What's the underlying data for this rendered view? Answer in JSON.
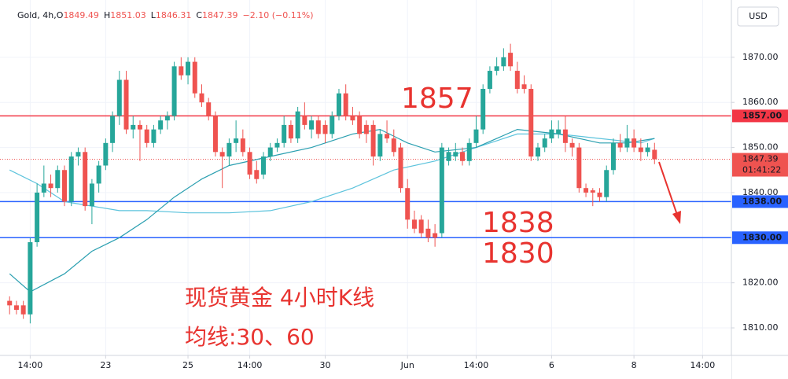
{
  "chart_data": {
    "type": "candlestick",
    "symbol": "Gold, 4h,",
    "header_values": [
      {
        "label": "O",
        "value": 1849.49
      },
      {
        "label": "H",
        "value": 1851.03
      },
      {
        "label": "L",
        "value": 1846.31
      },
      {
        "label": "C",
        "value": 1847.39
      }
    ],
    "change": "−2.10 (−0.11%)",
    "currency": "USD",
    "x": [
      0,
      1,
      2,
      3,
      4,
      5,
      6,
      7,
      8,
      9,
      10,
      11,
      12,
      13,
      14,
      15,
      16,
      17,
      18,
      19,
      20,
      21,
      22,
      23,
      24,
      25,
      26,
      27,
      28,
      29,
      30,
      31,
      32,
      33,
      34,
      35,
      36,
      37,
      38,
      39,
      40,
      41,
      42,
      43,
      44,
      45,
      46,
      47,
      48,
      49,
      50,
      51,
      52,
      53,
      54,
      55,
      56,
      57,
      58,
      59,
      60,
      61,
      62,
      63,
      64,
      65,
      66,
      67,
      68,
      69,
      70,
      71,
      72,
      73,
      74,
      75,
      76,
      77,
      78,
      79,
      80,
      81,
      82,
      83,
      84,
      85,
      86,
      87,
      88,
      89,
      90,
      91,
      92,
      93,
      94
    ],
    "open": [
      1816,
      1815,
      1815,
      1813,
      1829,
      1840,
      1842,
      1841,
      1845,
      1838,
      1848,
      1849,
      1837,
      1842,
      1846,
      1851,
      1857,
      1865,
      1854,
      1855,
      1854,
      1851,
      1854,
      1856,
      1857,
      1868,
      1866,
      1869,
      1862,
      1860,
      1857,
      1849,
      1848,
      1851,
      1852,
      1849,
      1845,
      1844,
      1848,
      1850,
      1851,
      1855,
      1852,
      1857,
      1854,
      1856,
      1855,
      1853,
      1857,
      1862,
      1857,
      1857,
      1855,
      1855,
      1848,
      1853,
      1852,
      1850,
      1841,
      1834,
      1834,
      1832,
      1831,
      1831,
      1847,
      1848,
      1849,
      1847,
      1851,
      1854,
      1863,
      1867,
      1868,
      1871,
      1867,
      1864,
      1863,
      1848,
      1850,
      1852,
      1853,
      1854,
      1851,
      1850,
      1841,
      1840.5,
      1840,
      1839,
      1845,
      1851,
      1850,
      1852,
      1850,
      1849,
      1849.49
    ],
    "high": [
      1817,
      1816,
      1816,
      1830,
      1842,
      1846,
      1844,
      1846,
      1846,
      1849,
      1850,
      1850,
      1843,
      1847,
      1852,
      1858,
      1867,
      1867,
      1857,
      1856,
      1855,
      1855,
      1857,
      1858,
      1869,
      1870,
      1870,
      1870,
      1864,
      1861,
      1858,
      1850,
      1852,
      1856,
      1854,
      1850,
      1847,
      1849,
      1851,
      1852,
      1857,
      1856,
      1859,
      1860,
      1857,
      1857,
      1856,
      1858,
      1863,
      1864,
      1859,
      1858,
      1856,
      1856,
      1854,
      1856,
      1854,
      1851,
      1843,
      1836,
      1835,
      1834,
      1833,
      1851,
      1850,
      1851,
      1850,
      1852,
      1857,
      1864,
      1868,
      1870,
      1872,
      1873,
      1869,
      1866,
      1864,
      1851,
      1853,
      1856,
      1856,
      1857,
      1852,
      1851,
      1842,
      1841,
      1841,
      1846,
      1852,
      1853,
      1855,
      1854,
      1852,
      1851,
      1851.03
    ],
    "low": [
      1813,
      1813,
      1812,
      1811,
      1828,
      1839,
      1839,
      1840,
      1837,
      1837,
      1846,
      1836,
      1833,
      1840,
      1845,
      1849,
      1855,
      1853,
      1852,
      1847,
      1850,
      1850,
      1853,
      1854,
      1856,
      1865,
      1864,
      1861,
      1859,
      1856,
      1848,
      1841,
      1846,
      1849,
      1848,
      1843,
      1842,
      1843,
      1847,
      1849,
      1850,
      1851,
      1851,
      1854,
      1852,
      1852,
      1851,
      1852,
      1856,
      1856,
      1855,
      1852,
      1851,
      1846,
      1847,
      1851,
      1848,
      1840,
      1832,
      1831,
      1830,
      1829,
      1828,
      1830,
      1846,
      1847,
      1846,
      1846,
      1850,
      1853,
      1862,
      1866,
      1867,
      1867,
      1862,
      1862,
      1847,
      1847,
      1849,
      1851,
      1852,
      1849,
      1848,
      1840,
      1839,
      1837,
      1838,
      1838,
      1844,
      1849,
      1849,
      1849,
      1847,
      1848,
      1846.31
    ],
    "close": [
      1815,
      1814,
      1813,
      1829,
      1840,
      1842,
      1841,
      1845,
      1838,
      1848,
      1849,
      1837,
      1842,
      1846,
      1851,
      1857,
      1865,
      1854,
      1855,
      1854,
      1851,
      1854,
      1856,
      1857,
      1868,
      1866,
      1869,
      1862,
      1860,
      1857,
      1849,
      1848,
      1851,
      1852,
      1849,
      1844,
      1843,
      1848,
      1850,
      1851,
      1855,
      1852,
      1858,
      1855,
      1856,
      1853,
      1853,
      1857,
      1862,
      1857,
      1856,
      1853,
      1853,
      1848,
      1853,
      1852,
      1849,
      1841,
      1834,
      1832,
      1831,
      1830,
      1830,
      1850,
      1849,
      1849,
      1847,
      1851,
      1854,
      1863,
      1867,
      1868,
      1870,
      1868,
      1863,
      1863,
      1848,
      1850,
      1852,
      1854,
      1854,
      1851,
      1850,
      1841,
      1840,
      1840,
      1839,
      1845,
      1851,
      1850,
      1852,
      1850,
      1849,
      1850,
      1847.39
    ],
    "up_color": "#26a69a",
    "down_color": "#ef5350",
    "xlim": [
      -1.4,
      105.2
    ],
    "xticks": [
      {
        "value": 3,
        "label": "14:00"
      },
      {
        "value": 14,
        "label": "23"
      },
      {
        "value": 26,
        "label": "25"
      },
      {
        "value": 35,
        "label": "14:00"
      },
      {
        "value": 46,
        "label": "30"
      },
      {
        "value": 58,
        "label": "Jun"
      },
      {
        "value": 68,
        "label": "14:00"
      },
      {
        "value": 79,
        "label": "6"
      },
      {
        "value": 91,
        "label": "8"
      },
      {
        "value": 101,
        "label": "14:00"
      }
    ],
    "ylim": [
      1803.9,
      1882.7
    ],
    "yticks": [
      {
        "value": 1810,
        "label": "1810.00"
      },
      {
        "value": 1820,
        "label": "1820.00"
      },
      {
        "value": 1830,
        "label": "1830.00"
      },
      {
        "value": 1840,
        "label": "1840.00"
      },
      {
        "value": 1850,
        "label": "1850.00"
      },
      {
        "value": 1860,
        "label": "1860.00"
      },
      {
        "value": 1870,
        "label": "1870.00"
      }
    ],
    "grid": true,
    "moving_averages": [
      {
        "color": "#5cc3dc",
        "x": [
          0,
          4,
          8,
          12,
          16,
          20,
          26,
          32,
          38,
          44,
          50,
          56,
          62,
          68,
          74,
          80,
          86,
          92,
          94
        ],
        "values": [
          1845,
          1842,
          1838,
          1837,
          1836,
          1836,
          1835.5,
          1835.5,
          1836,
          1838,
          1841,
          1845,
          1847,
          1850,
          1853,
          1853,
          1852,
          1851,
          1852
        ]
      },
      {
        "color": "#2a9fb0",
        "x": [
          0,
          3,
          8,
          12,
          16,
          20,
          24,
          28,
          32,
          38,
          44,
          50,
          54,
          58,
          62,
          68,
          74,
          80,
          86,
          90,
          94
        ],
        "values": [
          1822,
          1818,
          1822,
          1827,
          1830,
          1834,
          1839,
          1843,
          1846,
          1848,
          1850,
          1853,
          1854,
          1851,
          1849,
          1850,
          1854,
          1853,
          1851,
          1851,
          1852
        ]
      }
    ],
    "hlines": [
      {
        "value": 1857,
        "label": "1857.00",
        "color": "#f23645"
      },
      {
        "value": 1838,
        "label": "1838.00",
        "color": "#2962ff"
      },
      {
        "value": 1830,
        "label": "1830.00",
        "color": "#2962ff"
      }
    ],
    "last": {
      "value": 1847.39,
      "countdown": "01:41:22",
      "color": "#ef5350"
    },
    "annotations": [
      {
        "text": "1857"
      },
      {
        "text": "1838"
      },
      {
        "text": "1830"
      },
      {
        "text": "现货黄金 4小时K线"
      },
      {
        "text": "均线:30、60"
      }
    ]
  }
}
